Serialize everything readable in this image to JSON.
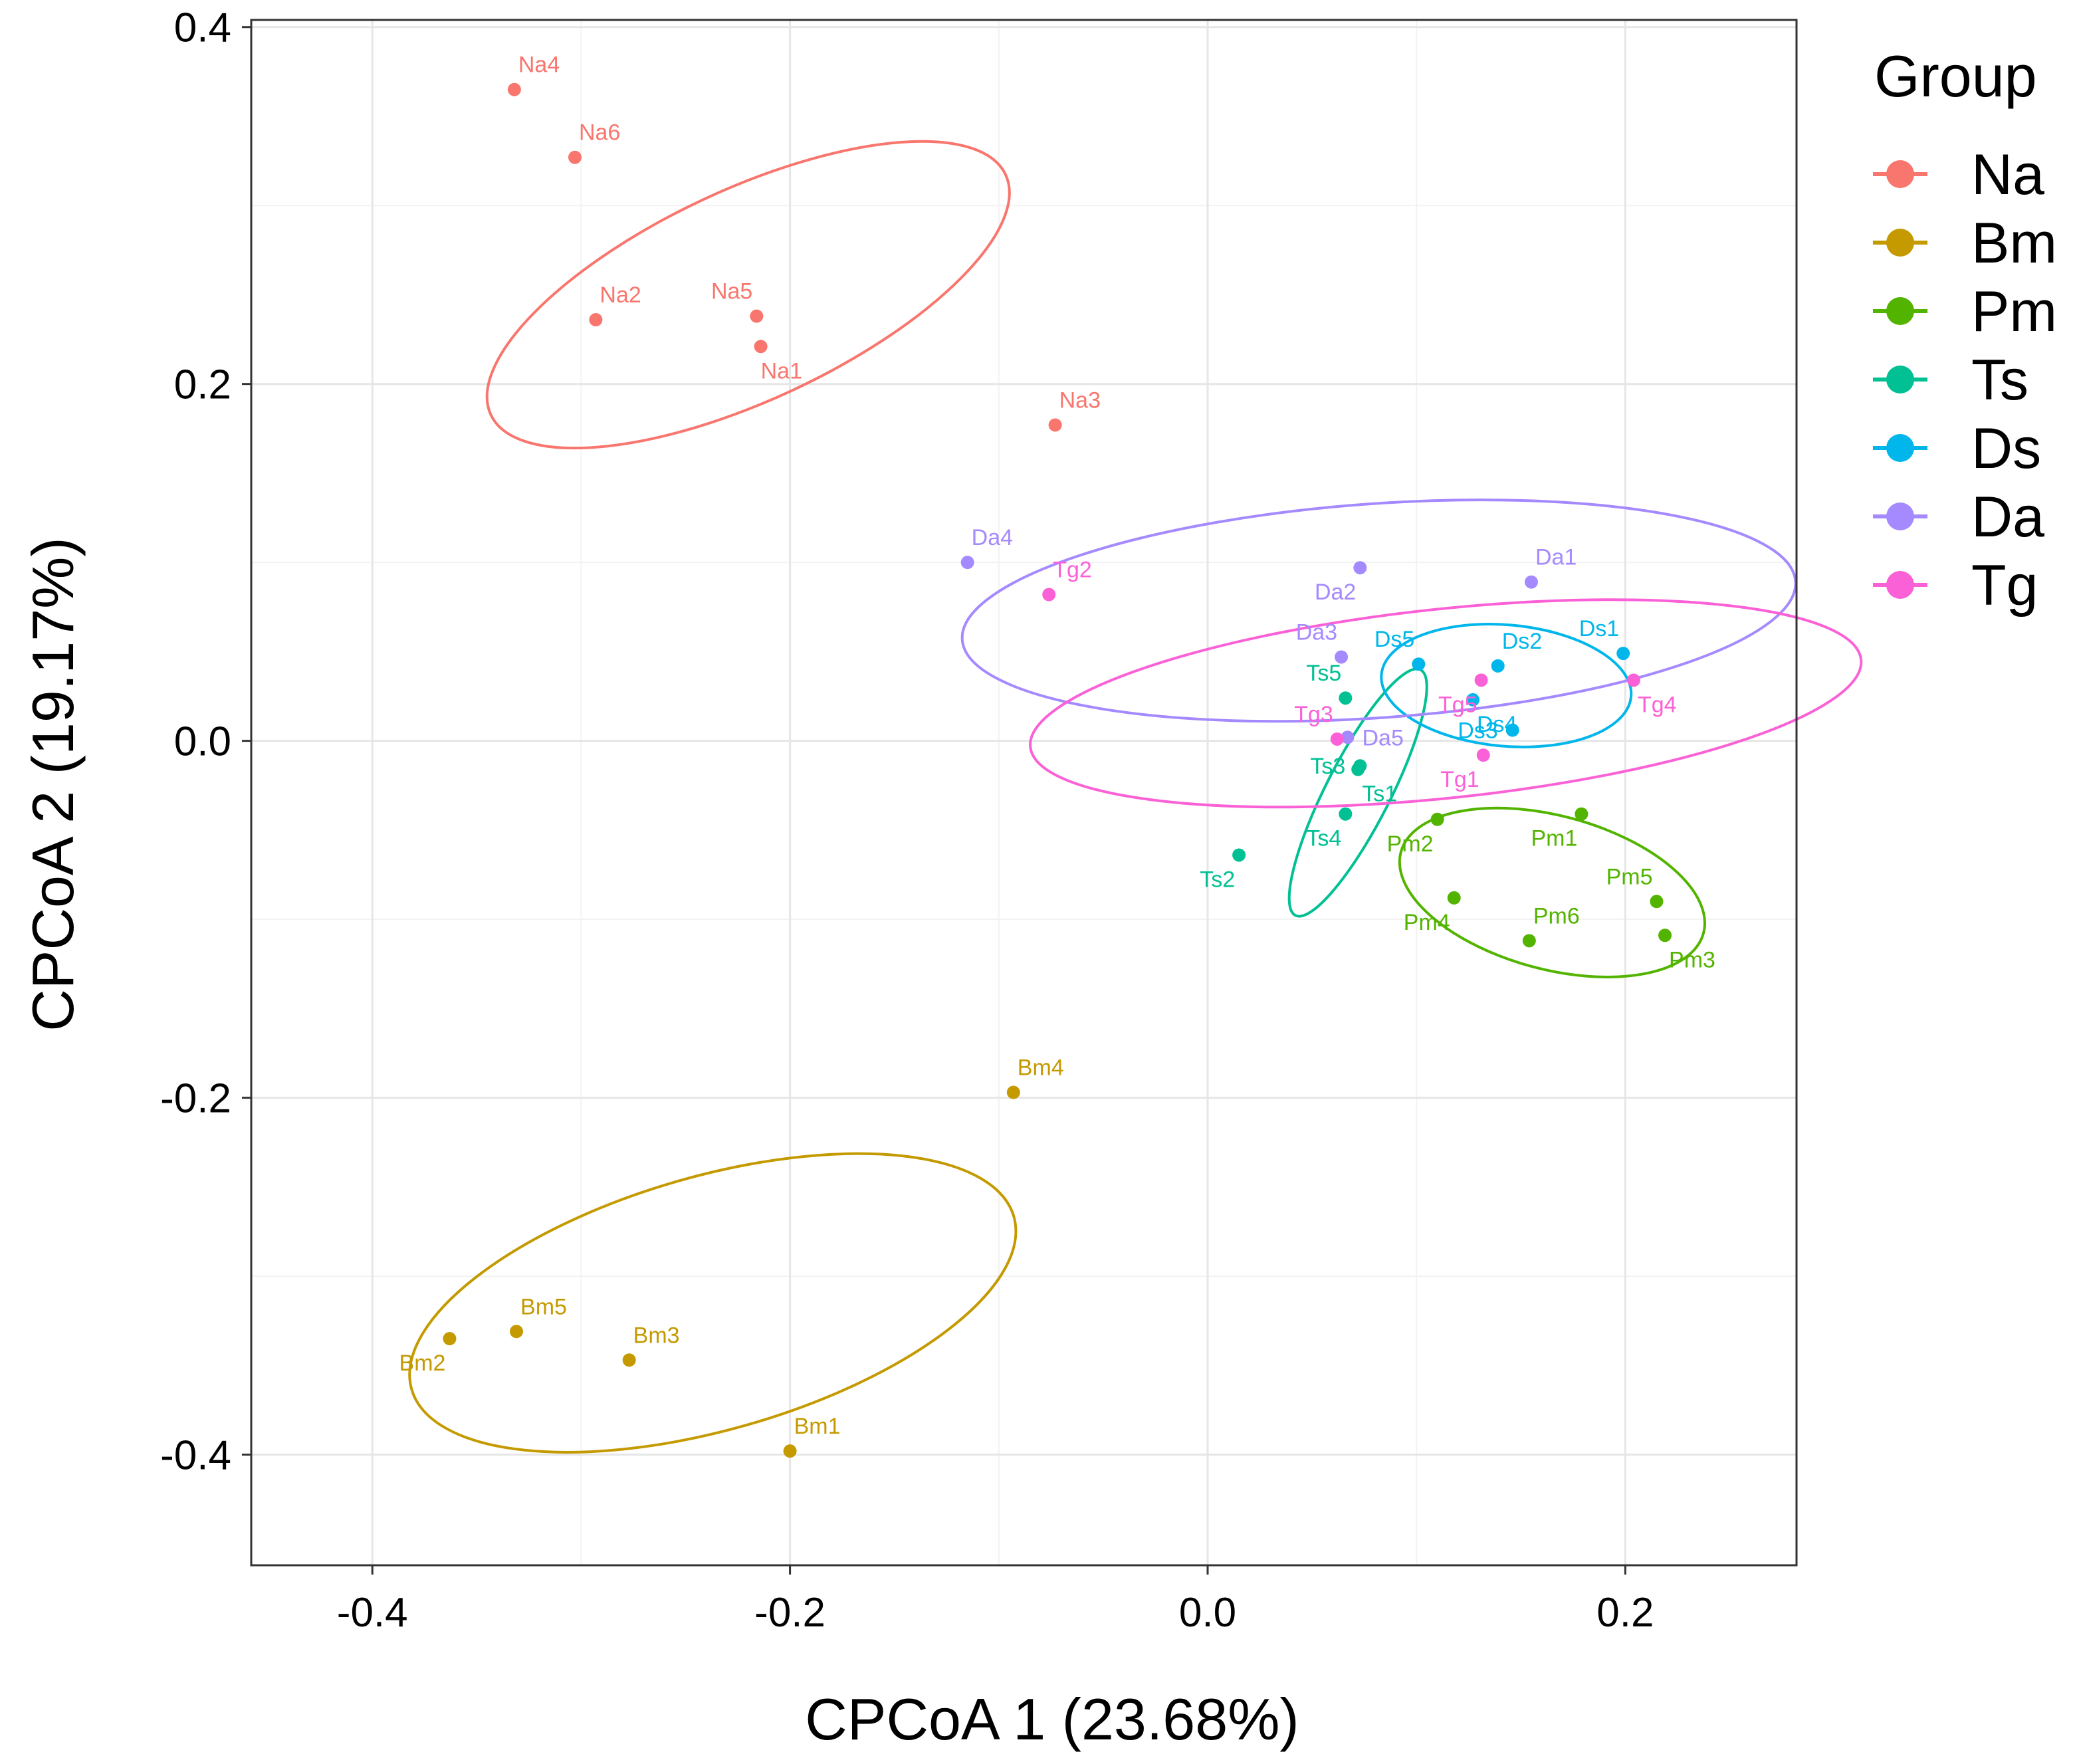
{
  "chart_data": {
    "type": "scatter",
    "xlabel": "CPCoA 1 (23.68%)",
    "ylabel": "CPCoA 2 (19.17%)",
    "xlim": [
      -0.458,
      0.282
    ],
    "ylim": [
      -0.462,
      0.404
    ],
    "xticks": [
      -0.4,
      -0.2,
      0.0,
      0.2
    ],
    "xtick_labels": [
      "-0.4",
      "-0.2",
      "0.0",
      "0.2"
    ],
    "yticks": [
      0.4,
      0.2,
      0.0,
      -0.2,
      -0.4
    ],
    "ytick_labels": [
      "0.4",
      "0.2",
      "0.0",
      "-0.2",
      "-0.4"
    ],
    "grid": true,
    "legend": {
      "title": "Group",
      "position": "right"
    },
    "groups": [
      {
        "name": "Na",
        "color": "#F8766D",
        "points": [
          {
            "label": "Na1",
            "x": -0.214,
            "y": 0.221,
            "pos": "below"
          },
          {
            "label": "Na2",
            "x": -0.293,
            "y": 0.236,
            "pos": "above-right"
          },
          {
            "label": "Na3",
            "x": -0.073,
            "y": 0.177,
            "pos": "above-right"
          },
          {
            "label": "Na4",
            "x": -0.332,
            "y": 0.365,
            "pos": "above-right"
          },
          {
            "label": "Na5",
            "x": -0.216,
            "y": 0.238,
            "pos": "above-left"
          },
          {
            "label": "Na6",
            "x": -0.303,
            "y": 0.327,
            "pos": "above-right"
          }
        ],
        "ellipse": {
          "cx": -0.22,
          "cy": 0.25,
          "rx": 0.136,
          "ry": 0.059,
          "angle_deg": -25
        }
      },
      {
        "name": "Bm",
        "color": "#C49A00",
        "points": [
          {
            "label": "Bm1",
            "x": -0.2,
            "y": -0.398,
            "pos": "above-right"
          },
          {
            "label": "Bm2",
            "x": -0.363,
            "y": -0.335,
            "pos": "below-left"
          },
          {
            "label": "Bm3",
            "x": -0.277,
            "y": -0.347,
            "pos": "above-right"
          },
          {
            "label": "Bm4",
            "x": -0.093,
            "y": -0.197,
            "pos": "above-right"
          },
          {
            "label": "Bm5",
            "x": -0.331,
            "y": -0.331,
            "pos": "above-right"
          }
        ],
        "ellipse": {
          "cx": -0.237,
          "cy": -0.315,
          "rx": 0.15,
          "ry": 0.071,
          "angle_deg": -16
        }
      },
      {
        "name": "Pm",
        "color": "#53B400",
        "points": [
          {
            "label": "Pm1",
            "x": 0.179,
            "y": -0.041,
            "pos": "below-left"
          },
          {
            "label": "Pm2",
            "x": 0.11,
            "y": -0.044,
            "pos": "below-left"
          },
          {
            "label": "Pm3",
            "x": 0.219,
            "y": -0.109,
            "pos": "below-right"
          },
          {
            "label": "Pm4",
            "x": 0.118,
            "y": -0.088,
            "pos": "below-left"
          },
          {
            "label": "Pm5",
            "x": 0.215,
            "y": -0.09,
            "pos": "above-left"
          },
          {
            "label": "Pm6",
            "x": 0.154,
            "y": -0.112,
            "pos": "above-right"
          }
        ],
        "ellipse": {
          "cx": 0.165,
          "cy": -0.085,
          "rx": 0.075,
          "ry": 0.043,
          "angle_deg": 15
        }
      },
      {
        "name": "Ts",
        "color": "#00C094",
        "points": [
          {
            "label": "Ts1",
            "x": 0.072,
            "y": -0.016,
            "pos": "below-right"
          },
          {
            "label": "Ts2",
            "x": 0.015,
            "y": -0.064,
            "pos": "below-left"
          },
          {
            "label": "Ts3",
            "x": 0.073,
            "y": -0.014,
            "pos": "left"
          },
          {
            "label": "Ts4",
            "x": 0.066,
            "y": -0.041,
            "pos": "below-left"
          },
          {
            "label": "Ts5",
            "x": 0.066,
            "y": 0.024,
            "pos": "above-left"
          }
        ],
        "ellipse": {
          "cx": 0.072,
          "cy": -0.029,
          "rx": 0.066,
          "ry": 0.018,
          "angle_deg": -63
        }
      },
      {
        "name": "Ds",
        "color": "#00B6EB",
        "points": [
          {
            "label": "Ds1",
            "x": 0.199,
            "y": 0.049,
            "pos": "above-left"
          },
          {
            "label": "Ds2",
            "x": 0.139,
            "y": 0.042,
            "pos": "above-right"
          },
          {
            "label": "Ds3",
            "x": 0.146,
            "y": 0.006,
            "pos": "left"
          },
          {
            "label": "Ds4",
            "x": 0.127,
            "y": 0.023,
            "pos": "below-right"
          },
          {
            "label": "Ds5",
            "x": 0.101,
            "y": 0.043,
            "pos": "above-left"
          }
        ],
        "ellipse": {
          "cx": 0.143,
          "cy": 0.031,
          "rx": 0.06,
          "ry": 0.034,
          "angle_deg": 5
        }
      },
      {
        "name": "Da",
        "color": "#A58AFF",
        "points": [
          {
            "label": "Da1",
            "x": 0.155,
            "y": 0.089,
            "pos": "above-right"
          },
          {
            "label": "Da2",
            "x": 0.073,
            "y": 0.097,
            "pos": "below-left"
          },
          {
            "label": "Da3",
            "x": 0.064,
            "y": 0.047,
            "pos": "above-left"
          },
          {
            "label": "Da4",
            "x": -0.115,
            "y": 0.1,
            "pos": "above-right"
          },
          {
            "label": "Da5",
            "x": 0.067,
            "y": 0.002,
            "pos": "right"
          }
        ],
        "ellipse": {
          "cx": 0.082,
          "cy": 0.073,
          "rx": 0.2,
          "ry": 0.06,
          "angle_deg": -4
        }
      },
      {
        "name": "Tg",
        "color": "#FB61D7",
        "points": [
          {
            "label": "Tg1",
            "x": 0.132,
            "y": -0.008,
            "pos": "below-left"
          },
          {
            "label": "Tg2",
            "x": -0.076,
            "y": 0.082,
            "pos": "above-right"
          },
          {
            "label": "Tg3",
            "x": 0.062,
            "y": 0.001,
            "pos": "above-left"
          },
          {
            "label": "Tg4",
            "x": 0.204,
            "y": 0.034,
            "pos": "below-right"
          },
          {
            "label": "Tg5",
            "x": 0.131,
            "y": 0.034,
            "pos": "below-left"
          }
        ],
        "ellipse": {
          "cx": 0.114,
          "cy": 0.021,
          "rx": 0.2,
          "ry": 0.053,
          "angle_deg": -6
        }
      }
    ]
  }
}
